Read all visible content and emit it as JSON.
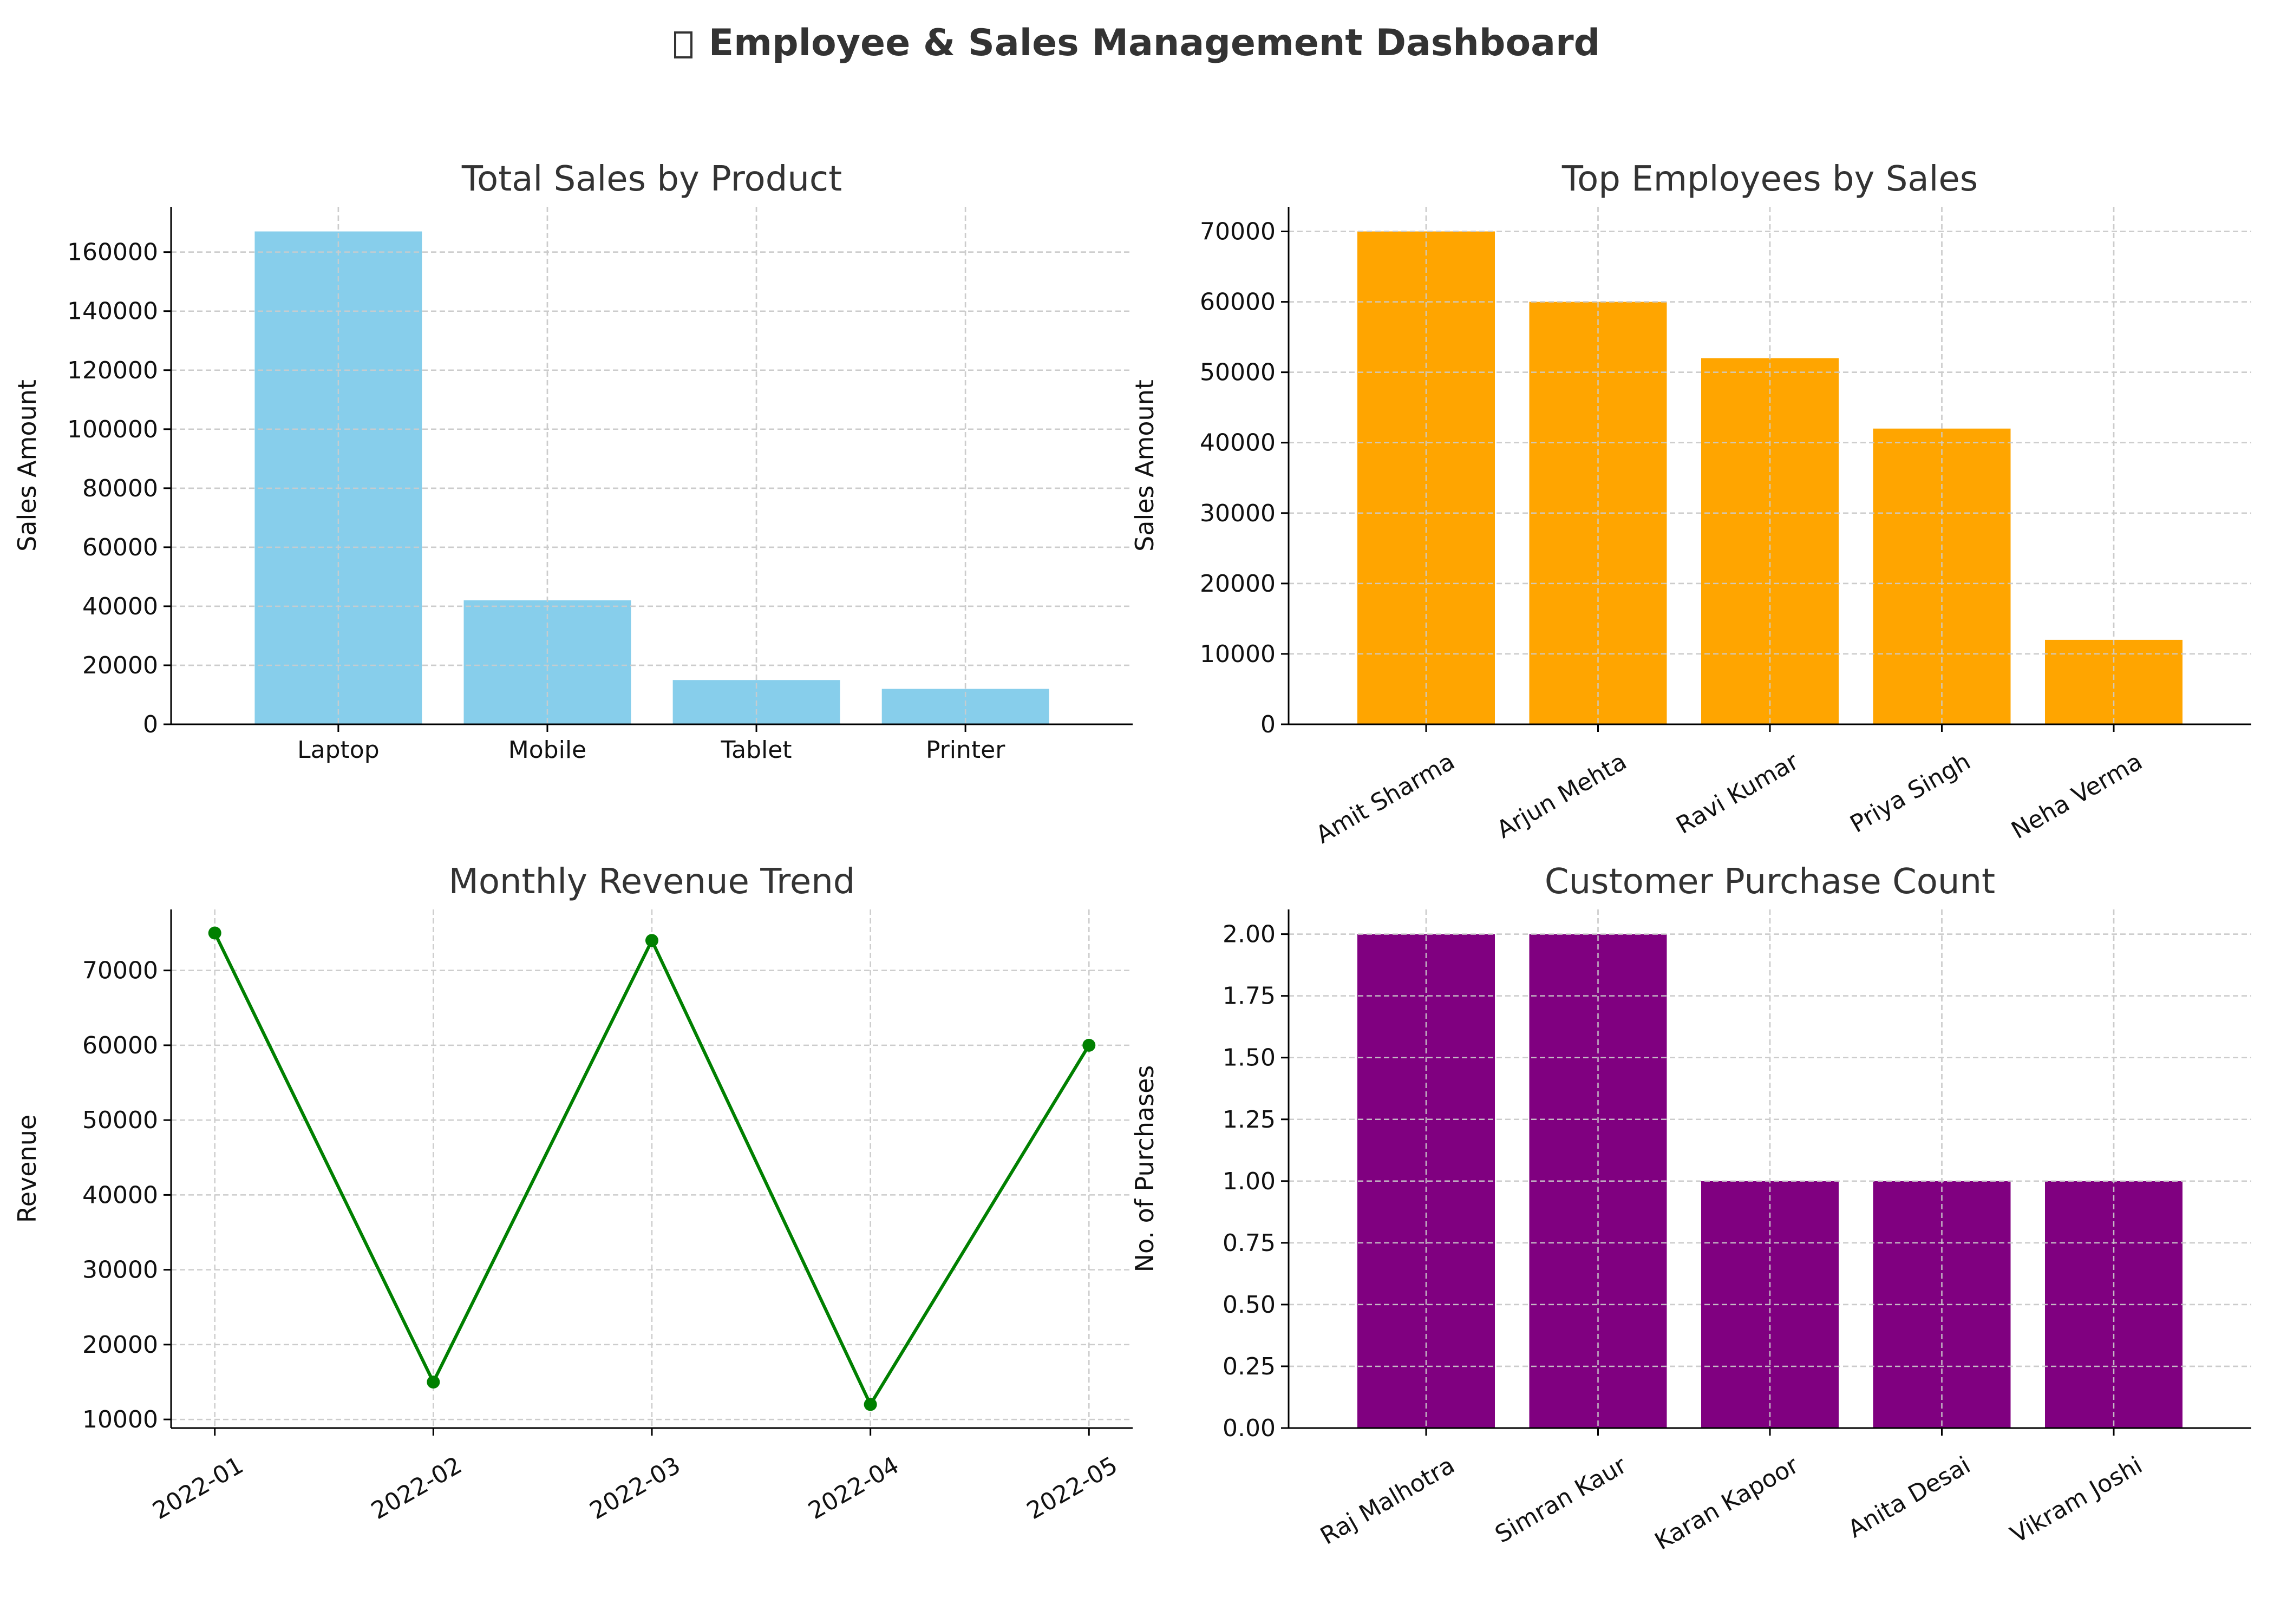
{
  "dashboard": {
    "title": "Employee & Sales Management Dashboard",
    "title_icon": "chart-emoji-icon"
  },
  "chart_data": [
    {
      "id": "sales-by-product",
      "type": "bar",
      "title": "Total Sales by Product",
      "xlabel": "",
      "ylabel": "Sales Amount",
      "categories": [
        "Laptop",
        "Mobile",
        "Tablet",
        "Printer"
      ],
      "values": [
        167000,
        42000,
        15000,
        12000
      ],
      "yticks": [
        "0",
        "20000",
        "40000",
        "60000",
        "80000",
        "100000",
        "120000",
        "140000",
        "160000"
      ],
      "ylim": [
        0,
        175350
      ],
      "color": "#87CEEB",
      "grid": true,
      "rotate_xticks": false
    },
    {
      "id": "top-employees",
      "type": "bar",
      "title": "Top Employees by Sales",
      "xlabel": "",
      "ylabel": "Sales Amount",
      "categories": [
        "Amit Sharma",
        "Arjun Mehta",
        "Ravi Kumar",
        "Priya Singh",
        "Neha Verma"
      ],
      "values": [
        70000,
        60000,
        52000,
        42000,
        12000
      ],
      "yticks": [
        "0",
        "10000",
        "20000",
        "30000",
        "40000",
        "50000",
        "60000",
        "70000"
      ],
      "ylim": [
        0,
        73500
      ],
      "color": "#FFA500",
      "grid": true,
      "rotate_xticks": true
    },
    {
      "id": "monthly-revenue",
      "type": "line",
      "title": "Monthly Revenue Trend",
      "xlabel": "",
      "ylabel": "Revenue",
      "x": [
        "2022-01",
        "2022-02",
        "2022-03",
        "2022-04",
        "2022-05"
      ],
      "values": [
        75000,
        15000,
        74000,
        12000,
        60000
      ],
      "yticks": [
        "10000",
        "20000",
        "30000",
        "40000",
        "50000",
        "60000",
        "70000"
      ],
      "ylim": [
        8850,
        78150
      ],
      "color": "#008000",
      "marker": "circle",
      "grid": true,
      "rotate_xticks": true
    },
    {
      "id": "customer-purchases",
      "type": "bar",
      "title": "Customer Purchase Count",
      "xlabel": "",
      "ylabel": "No. of Purchases",
      "categories": [
        "Raj Malhotra",
        "Simran Kaur",
        "Karan Kapoor",
        "Anita Desai",
        "Vikram Joshi"
      ],
      "values": [
        2,
        2,
        1,
        1,
        1
      ],
      "yticks": [
        "0.00",
        "0.25",
        "0.50",
        "0.75",
        "1.00",
        "1.25",
        "1.50",
        "1.75",
        "2.00"
      ],
      "ylim": [
        0,
        2.1
      ],
      "color": "#800080",
      "grid": true,
      "rotate_xticks": true
    }
  ]
}
